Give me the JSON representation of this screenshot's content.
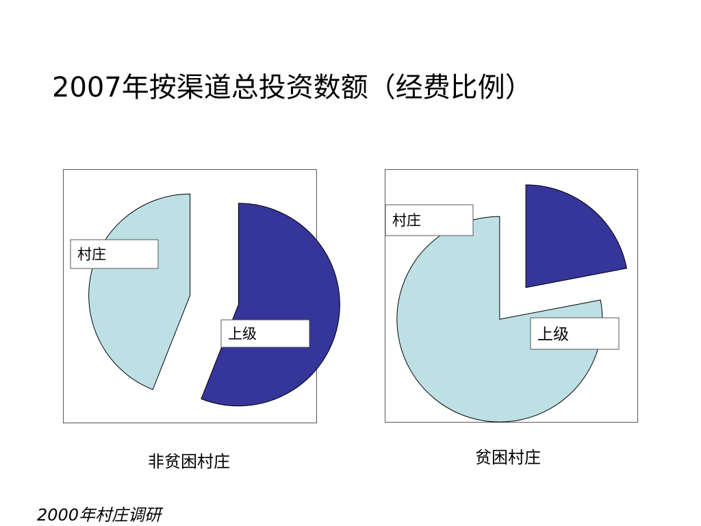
{
  "page": {
    "title": "2007年按渠道总投资数额（经费比例）",
    "footnote": "2000年村庄调研"
  },
  "colors": {
    "village": "#35359a",
    "upper": "#bde0e5",
    "outline": "#000000",
    "frame": "#555555"
  },
  "chart_data": [
    {
      "type": "pie",
      "exploded": true,
      "caption": "非贫困村庄",
      "slices": [
        {
          "label": "村庄",
          "value": 56,
          "color": "#35359a"
        },
        {
          "label": "上级",
          "value": 44,
          "color": "#bde0e5"
        }
      ]
    },
    {
      "type": "pie",
      "exploded": true,
      "caption": "贫困村庄",
      "slices": [
        {
          "label": "村庄",
          "value": 22,
          "color": "#35359a"
        },
        {
          "label": "上级",
          "value": 78,
          "color": "#bde0e5"
        }
      ]
    }
  ]
}
